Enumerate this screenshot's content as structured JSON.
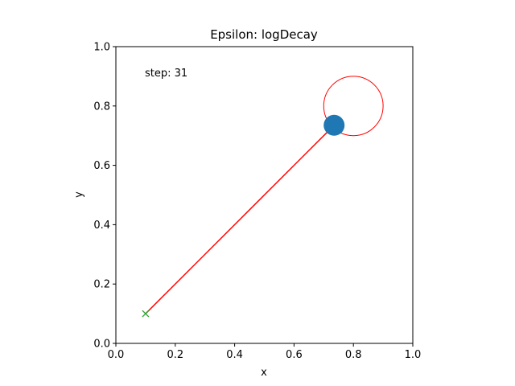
{
  "chart_data": {
    "type": "scatter",
    "title": "Epsilon: logDecay",
    "xlabel": "x",
    "ylabel": "y",
    "xlim": [
      0.0,
      1.0
    ],
    "ylim": [
      0.0,
      1.0
    ],
    "x_ticks": [
      "0.0",
      "0.2",
      "0.4",
      "0.6",
      "0.8",
      "1.0"
    ],
    "y_ticks": [
      "0.0",
      "0.2",
      "0.4",
      "0.6",
      "0.8",
      "1.0"
    ],
    "grid": false,
    "annotation": "step: 31",
    "start_marker": {
      "x": 0.1,
      "y": 0.1,
      "marker": "x",
      "color": "#2ca02c"
    },
    "path_line": {
      "x": [
        0.1,
        0.735
      ],
      "y": [
        0.1,
        0.735
      ],
      "color": "#ff0000"
    },
    "agent_point": {
      "x": 0.735,
      "y": 0.735,
      "color": "#1f77b4"
    },
    "goal_circle": {
      "x": 0.8,
      "y": 0.8,
      "radius": 0.1,
      "color": "#ff0000"
    }
  }
}
